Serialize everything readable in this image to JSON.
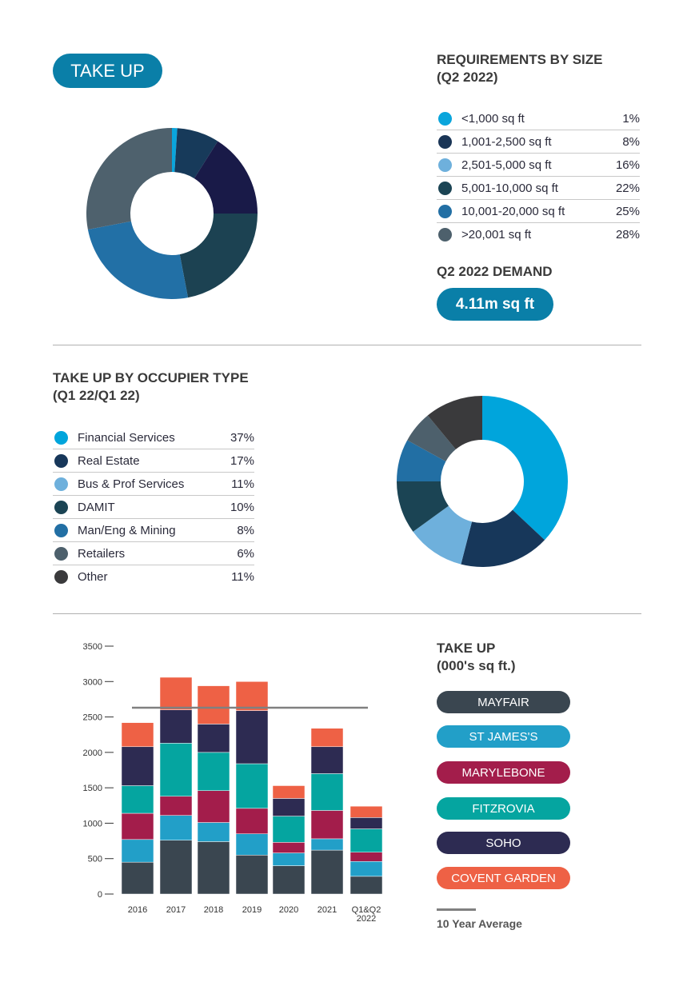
{
  "take_up_badge": "TAKE UP",
  "size_section": {
    "title_line1": "REQUIREMENTS BY SIZE",
    "title_line2": "(Q2 2022)",
    "items": [
      {
        "label": "<1,000 sq ft",
        "pct": "1%",
        "value": 1,
        "color": "#0aa5dc",
        "slice_color": "#0aa5dc"
      },
      {
        "label": "1,001-2,500 sq ft",
        "pct": "8%",
        "value": 8,
        "color": "#1a3556",
        "slice_color": "#173a5a"
      },
      {
        "label": "2,501-5,000 sq ft",
        "pct": "16%",
        "value": 16,
        "color": "#6eb0dc",
        "slice_color": "#191a48"
      },
      {
        "label": "5,001-10,000 sq ft",
        "pct": "22%",
        "value": 22,
        "color": "#1b4454",
        "slice_color": "#1c4252"
      },
      {
        "label": "10,001-20,000 sq ft",
        "pct": "25%",
        "value": 25,
        "color": "#226fa4",
        "slice_color": "#2270a6"
      },
      {
        "label": ">20,001 sq ft",
        "pct": "28%",
        "value": 28,
        "color": "#4d606c",
        "slice_color": "#4e616d"
      }
    ],
    "demand_title": "Q2 2022 DEMAND",
    "demand_value": "4.11m sq ft"
  },
  "occupier_section": {
    "title_line1": "TAKE UP BY OCCUPIER TYPE",
    "title_line2": "(Q1 22/Q1 22)",
    "items": [
      {
        "label": "Financial Services",
        "pct": "37%",
        "value": 37,
        "color": "#00a5dc"
      },
      {
        "label": "Real Estate",
        "pct": "17%",
        "value": 17,
        "color": "#17375a"
      },
      {
        "label": "Bus & Prof Services",
        "pct": "11%",
        "value": 11,
        "color": "#6eb0dc"
      },
      {
        "label": "DAMIT",
        "pct": "10%",
        "value": 10,
        "color": "#1b4454"
      },
      {
        "label": "Man/Eng & Mining",
        "pct": "8%",
        "value": 8,
        "color": "#226fa4"
      },
      {
        "label": "Retailers",
        "pct": "6%",
        "value": 6,
        "color": "#4d606c"
      },
      {
        "label": "Other",
        "pct": "11%",
        "value": 11,
        "color": "#3a3a3c"
      }
    ]
  },
  "chart_data": {
    "type": "bar",
    "stacked": true,
    "title_line1": "TAKE UP",
    "title_line2": "(000's sq ft.)",
    "categories": [
      "2016",
      "2017",
      "2018",
      "2019",
      "2020",
      "2021",
      "Q1&Q2 2022"
    ],
    "category_lines": [
      [
        "2016"
      ],
      [
        "2017"
      ],
      [
        "2018"
      ],
      [
        "2019"
      ],
      [
        "2020"
      ],
      [
        "2021"
      ],
      [
        "Q1&Q2",
        "2022"
      ]
    ],
    "ylim": [
      0,
      3500
    ],
    "yticks": [
      "0",
      "500",
      "1000",
      "1500",
      "2000",
      "2500",
      "3000",
      "3500"
    ],
    "series": [
      {
        "name": "MAYFAIR",
        "color": "#3a4650",
        "values": [
          450,
          760,
          740,
          550,
          400,
          620,
          250
        ]
      },
      {
        "name": "ST JAMES'S",
        "color": "#229fc8",
        "values": [
          320,
          350,
          270,
          300,
          180,
          160,
          210
        ]
      },
      {
        "name": "MARYLEBONE",
        "color": "#a31d4b",
        "values": [
          370,
          270,
          450,
          360,
          150,
          400,
          130
        ]
      },
      {
        "name": "FITZROVIA",
        "color": "#05a5a0",
        "values": [
          390,
          750,
          540,
          630,
          370,
          520,
          330
        ]
      },
      {
        "name": "SOHO",
        "color": "#2d2b52",
        "values": [
          550,
          470,
          400,
          750,
          250,
          380,
          160
        ]
      },
      {
        "name": "COVENT GARDEN",
        "color": "#ee6145",
        "values": [
          340,
          460,
          540,
          410,
          180,
          260,
          160
        ]
      }
    ],
    "average": {
      "name": "10 Year Average",
      "value": 2630,
      "color": "#808080"
    },
    "legend_placement": "right",
    "grid": false
  }
}
